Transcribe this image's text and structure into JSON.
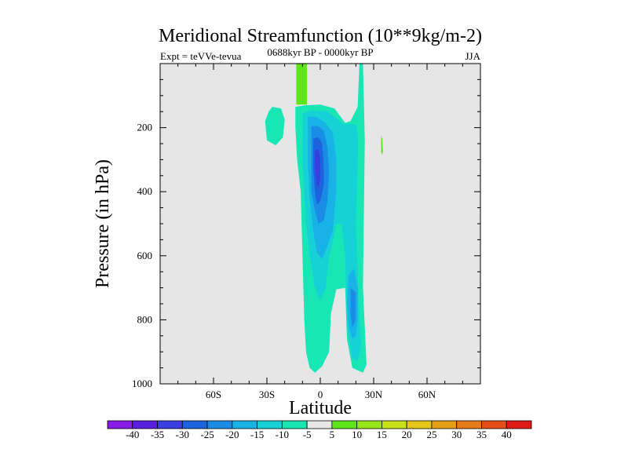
{
  "chart_data": {
    "type": "heatmap",
    "title": "Meridional Streamfunction (10**9kg/m-2)",
    "subtitle": "0688kyr BP - 0000kyr BP",
    "left_label": "Expt = teVVe-tevua",
    "right_label": "JJA",
    "xlabel": "Latitude",
    "ylabel": "Pressure (in hPa)",
    "x_axis": {
      "range": [
        -90,
        90
      ],
      "ticks": [
        -60,
        -30,
        0,
        30,
        60
      ],
      "tick_labels": [
        "60S",
        "30S",
        "0",
        "30N",
        "60N"
      ]
    },
    "y_axis": {
      "range": [
        0,
        1000
      ],
      "inverted": true,
      "ticks": [
        200,
        400,
        600,
        800,
        1000
      ],
      "tick_labels": [
        "200",
        "400",
        "600",
        "800",
        "1000"
      ]
    },
    "background_color": "#e6e6e6",
    "colorbar": {
      "labels": [
        "-40",
        "-35",
        "-30",
        "-25",
        "-20",
        "-15",
        "-10",
        "-5",
        "5",
        "10",
        "15",
        "20",
        "25",
        "30",
        "35",
        "40"
      ],
      "colors": [
        "#8a1ce8",
        "#5a1fe0",
        "#3a3ee0",
        "#1d63e0",
        "#1a8ce6",
        "#18b2e6",
        "#16d2d6",
        "#18e6b4",
        "#e6e6e6",
        "#5ee61a",
        "#98e618",
        "#c8e018",
        "#e6c818",
        "#e6a018",
        "#e67c18",
        "#e64e18",
        "#e01c16"
      ]
    },
    "regions": [
      {
        "level": "-5 to -10",
        "color": "#18e6b4",
        "points": [
          [
            -27,
            135
          ],
          [
            -22,
            140
          ],
          [
            -20,
            175
          ],
          [
            -21,
            230
          ],
          [
            -25,
            255
          ],
          [
            -30,
            240
          ],
          [
            -31,
            180
          ],
          [
            -29,
            150
          ]
        ]
      },
      {
        "level": "-5 to -10",
        "color": "#18e6b4",
        "points": [
          [
            -14,
            135
          ],
          [
            -8,
            130
          ],
          [
            0,
            128
          ],
          [
            8,
            140
          ],
          [
            14,
            185
          ],
          [
            17,
            180
          ],
          [
            21,
            135
          ],
          [
            22,
            0
          ],
          [
            24,
            0
          ],
          [
            25,
            240
          ],
          [
            24,
            700
          ],
          [
            26,
            940
          ],
          [
            24,
            965
          ],
          [
            18,
            950
          ],
          [
            15,
            860
          ],
          [
            14,
            700
          ],
          [
            9,
            705
          ],
          [
            6,
            780
          ],
          [
            5,
            900
          ],
          [
            1,
            945
          ],
          [
            -3,
            965
          ],
          [
            -6,
            950
          ],
          [
            -8,
            900
          ],
          [
            -9,
            800
          ],
          [
            -10,
            600
          ],
          [
            -11,
            400
          ],
          [
            -13,
            300
          ],
          [
            -14,
            200
          ]
        ]
      },
      {
        "level": "-10 to -15",
        "color": "#16d2d6",
        "points": [
          [
            -10,
            155
          ],
          [
            -4,
            145
          ],
          [
            4,
            150
          ],
          [
            9,
            170
          ],
          [
            13,
            190
          ],
          [
            17,
            188
          ],
          [
            20,
            190
          ],
          [
            21,
            220
          ],
          [
            21,
            300
          ],
          [
            20,
            500
          ],
          [
            22,
            800
          ],
          [
            23,
            880
          ],
          [
            21,
            930
          ],
          [
            18,
            920
          ],
          [
            15,
            820
          ],
          [
            14,
            600
          ],
          [
            12,
            500
          ],
          [
            9,
            500
          ],
          [
            7,
            560
          ],
          [
            5,
            600
          ],
          [
            3,
            700
          ],
          [
            0,
            740
          ],
          [
            -3,
            700
          ],
          [
            -6,
            600
          ],
          [
            -8,
            500
          ],
          [
            -9,
            400
          ],
          [
            -10,
            300
          ],
          [
            -10,
            200
          ]
        ]
      },
      {
        "level": "-15 to -20",
        "color": "#18b2e6",
        "points": [
          [
            -7,
            165
          ],
          [
            -2,
            168
          ],
          [
            3,
            185
          ],
          [
            7,
            215
          ],
          [
            9,
            300
          ],
          [
            9,
            400
          ],
          [
            7,
            520
          ],
          [
            4,
            570
          ],
          [
            1,
            610
          ],
          [
            -2,
            590
          ],
          [
            -4,
            520
          ],
          [
            -6,
            420
          ],
          [
            -7,
            300
          ],
          [
            -7,
            200
          ]
        ]
      },
      {
        "level": "-15 to -20",
        "color": "#18b2e6",
        "points": [
          [
            16,
            660
          ],
          [
            19,
            640
          ],
          [
            21,
            700
          ],
          [
            21,
            800
          ],
          [
            20,
            850
          ],
          [
            18,
            860
          ],
          [
            16,
            820
          ],
          [
            15,
            750
          ]
        ]
      },
      {
        "level": "-20 to -25",
        "color": "#1a8ce6",
        "points": [
          [
            -5,
            195
          ],
          [
            -1,
            195
          ],
          [
            2,
            210
          ],
          [
            4,
            260
          ],
          [
            5,
            340
          ],
          [
            4,
            430
          ],
          [
            2,
            490
          ],
          [
            -1,
            500
          ],
          [
            -3,
            460
          ],
          [
            -5,
            400
          ],
          [
            -5,
            300
          ],
          [
            -5,
            240
          ]
        ]
      },
      {
        "level": "-20 to -25",
        "color": "#1a8ce6",
        "points": [
          [
            17,
            700
          ],
          [
            20,
            715
          ],
          [
            20,
            800
          ],
          [
            18,
            825
          ],
          [
            17,
            780
          ]
        ]
      },
      {
        "level": "-25 to -30",
        "color": "#1d63e0",
        "points": [
          [
            -4,
            235
          ],
          [
            -1,
            230
          ],
          [
            1,
            250
          ],
          [
            2,
            320
          ],
          [
            2,
            380
          ],
          [
            0,
            430
          ],
          [
            -2,
            440
          ],
          [
            -3,
            400
          ],
          [
            -4,
            330
          ],
          [
            -4,
            270
          ]
        ]
      },
      {
        "level": "-30 to -35",
        "color": "#3a3ee0",
        "points": [
          [
            -3,
            270
          ],
          [
            -1,
            268
          ],
          [
            0,
            300
          ],
          [
            0,
            360
          ],
          [
            -1,
            385
          ],
          [
            -2,
            380
          ],
          [
            -3,
            330
          ]
        ]
      },
      {
        "level": "5 to 10",
        "color": "#5ee61a",
        "points": [
          [
            -13.5,
            0
          ],
          [
            -7.5,
            0
          ],
          [
            -7.5,
            128
          ],
          [
            -13.5,
            128
          ]
        ]
      },
      {
        "level": "5 to 10",
        "color": "#5ee61a",
        "points": [
          [
            34.2,
            225
          ],
          [
            34.8,
            235
          ],
          [
            35.2,
            275
          ],
          [
            34.8,
            285
          ],
          [
            34.2,
            275
          ]
        ]
      }
    ]
  }
}
